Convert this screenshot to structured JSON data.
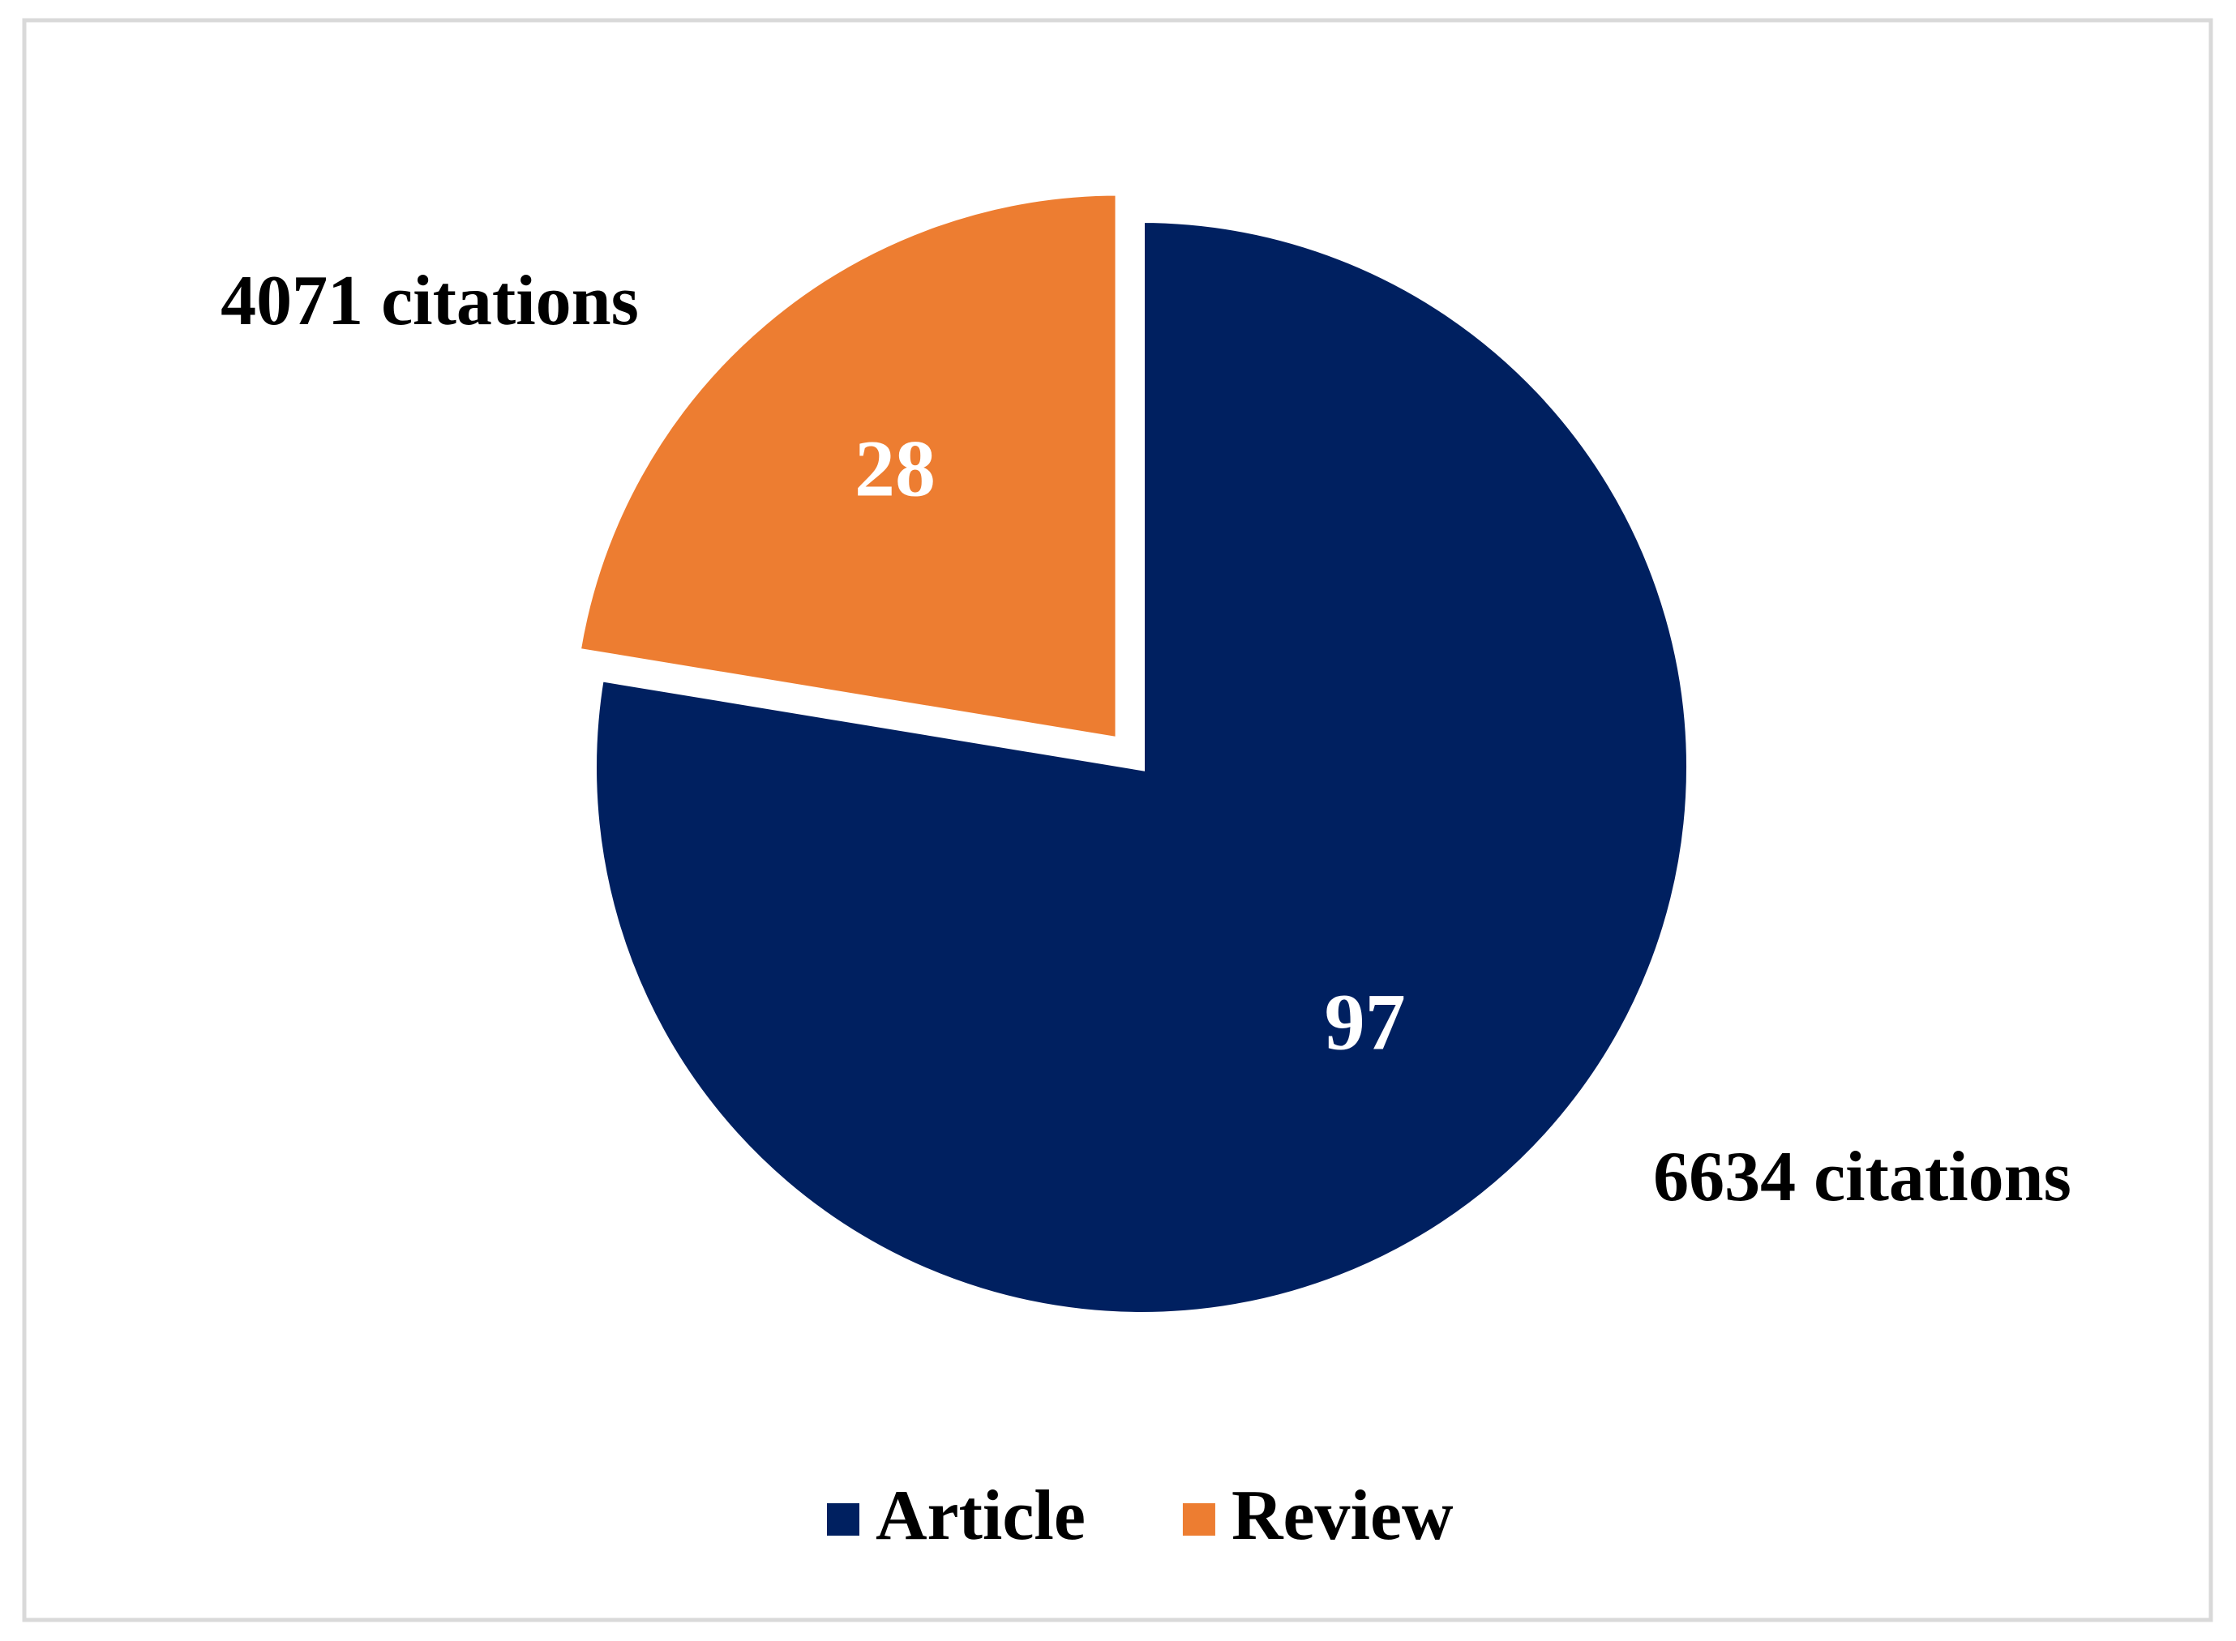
{
  "chart_data": {
    "type": "pie",
    "categories": [
      "Article",
      "Review"
    ],
    "values": [
      97,
      28
    ],
    "colors": [
      "#002060",
      "#ED7D31"
    ],
    "annotations": [
      "6634 citations",
      "4071 citations"
    ],
    "legend": "bottom"
  }
}
